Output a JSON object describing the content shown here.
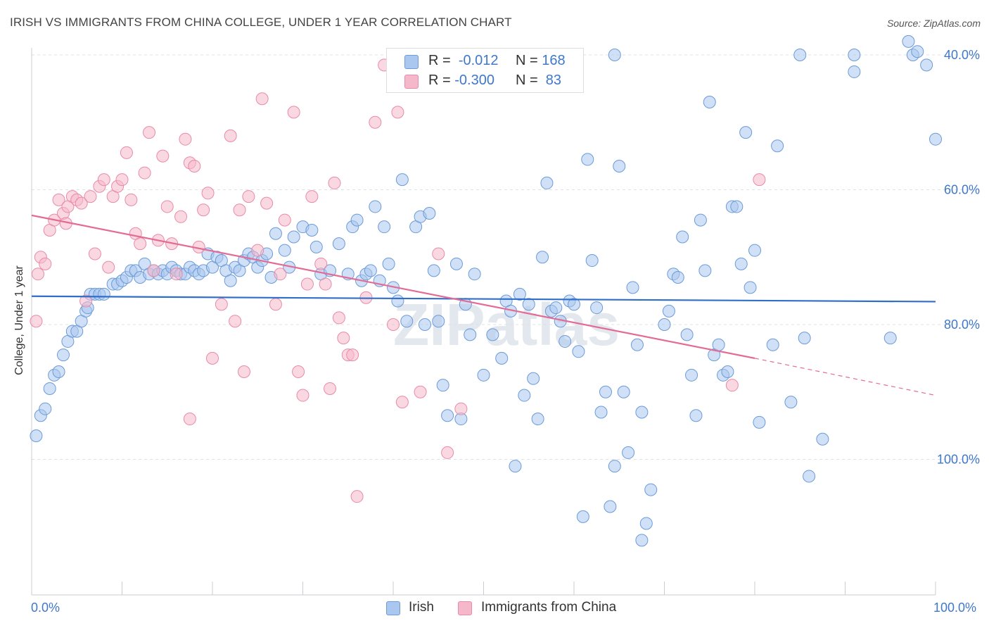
{
  "title": "IRISH VS IMMIGRANTS FROM CHINA COLLEGE, UNDER 1 YEAR CORRELATION CHART",
  "source": "Source: ZipAtlas.com",
  "legend": {
    "rows": [
      {
        "r_label": "R =",
        "r_value": "-0.012",
        "n_label": "N =",
        "n_value": "168",
        "color": "#a9c7ef"
      },
      {
        "r_label": "R =",
        "r_value": "-0.300",
        "n_label": "N =",
        "n_value": " 83",
        "color": "#f5b8cb"
      }
    ]
  },
  "bottom_legend": [
    {
      "label": "Irish",
      "color": "#a9c7ef"
    },
    {
      "label": "Immigrants from China",
      "color": "#f5b8cb"
    }
  ],
  "axis": {
    "x_min_label": "0.0%",
    "x_max_label": "100.0%",
    "y_label": "College, Under 1 year",
    "y_ticks": [
      "100.0%",
      "80.0%",
      "60.0%",
      "40.0%"
    ]
  },
  "watermark": "ZIPatlas",
  "chart_data": {
    "type": "scatter",
    "title": "IRISH VS IMMIGRANTS FROM CHINA COLLEGE, UNDER 1 YEAR CORRELATION CHART",
    "xlabel": "",
    "ylabel": "College, Under 1 year",
    "xlim": [
      0,
      100
    ],
    "ylim": [
      20,
      103
    ],
    "y_ticks": [
      40,
      60,
      80,
      100
    ],
    "grid": "horizontal dashed",
    "legend_position": "top-center",
    "series": [
      {
        "name": "Irish",
        "color": "#a9c7ef",
        "edge": "#6b9bd8",
        "trend": {
          "x0": 0,
          "y0": 64.2,
          "x1": 100,
          "y1": 63.4,
          "color": "#2f6fca"
        },
        "points": [
          [
            0.5,
            43.5
          ],
          [
            1.0,
            46.5
          ],
          [
            1.5,
            47.5
          ],
          [
            2.0,
            50.5
          ],
          [
            2.5,
            52.5
          ],
          [
            3.0,
            53.0
          ],
          [
            3.5,
            55.5
          ],
          [
            4.0,
            57.5
          ],
          [
            4.5,
            59.0
          ],
          [
            5.0,
            59.0
          ],
          [
            5.5,
            60.5
          ],
          [
            6.0,
            62.0
          ],
          [
            6.2,
            62.5
          ],
          [
            6.5,
            64.5
          ],
          [
            7.0,
            64.5
          ],
          [
            7.5,
            64.5
          ],
          [
            8.0,
            64.5
          ],
          [
            9.0,
            66.0
          ],
          [
            9.5,
            66.0
          ],
          [
            10.0,
            66.5
          ],
          [
            10.5,
            67.0
          ],
          [
            11.0,
            68.0
          ],
          [
            11.5,
            68.0
          ],
          [
            12.0,
            67.0
          ],
          [
            12.5,
            69.0
          ],
          [
            13.0,
            67.5
          ],
          [
            13.5,
            68.0
          ],
          [
            14.0,
            67.5
          ],
          [
            14.5,
            68.0
          ],
          [
            15.0,
            67.5
          ],
          [
            15.5,
            68.5
          ],
          [
            16.0,
            68.0
          ],
          [
            16.5,
            67.5
          ],
          [
            17.0,
            67.5
          ],
          [
            17.5,
            68.5
          ],
          [
            18.0,
            68.0
          ],
          [
            18.5,
            67.5
          ],
          [
            19.0,
            68.0
          ],
          [
            19.5,
            70.5
          ],
          [
            20.0,
            68.5
          ],
          [
            20.5,
            70.0
          ],
          [
            21.0,
            69.5
          ],
          [
            21.5,
            68.0
          ],
          [
            22.0,
            66.5
          ],
          [
            22.5,
            68.5
          ],
          [
            23.0,
            68.0
          ],
          [
            23.5,
            69.5
          ],
          [
            24.0,
            70.5
          ],
          [
            24.5,
            70.0
          ],
          [
            25.0,
            68.5
          ],
          [
            25.5,
            69.5
          ],
          [
            26.0,
            70.5
          ],
          [
            26.5,
            67.0
          ],
          [
            27.0,
            73.5
          ],
          [
            28.0,
            71.0
          ],
          [
            28.5,
            68.5
          ],
          [
            29.0,
            73.0
          ],
          [
            30.0,
            74.5
          ],
          [
            31.0,
            74.0
          ],
          [
            31.5,
            71.5
          ],
          [
            32.0,
            67.5
          ],
          [
            33.0,
            68.0
          ],
          [
            34.0,
            72.0
          ],
          [
            35.0,
            67.5
          ],
          [
            35.5,
            74.5
          ],
          [
            36.0,
            75.5
          ],
          [
            36.5,
            66.5
          ],
          [
            37.0,
            67.5
          ],
          [
            37.5,
            68.0
          ],
          [
            38.0,
            77.5
          ],
          [
            38.5,
            66.5
          ],
          [
            39.0,
            74.5
          ],
          [
            39.5,
            69.0
          ],
          [
            40.0,
            65.5
          ],
          [
            40.5,
            63.5
          ],
          [
            41.0,
            81.5
          ],
          [
            41.5,
            60.5
          ],
          [
            42.5,
            74.5
          ],
          [
            43.0,
            76.0
          ],
          [
            43.5,
            60.0
          ],
          [
            44.0,
            76.5
          ],
          [
            44.5,
            68.0
          ],
          [
            45.0,
            60.5
          ],
          [
            45.5,
            51.0
          ],
          [
            46.0,
            46.5
          ],
          [
            47.0,
            69.0
          ],
          [
            47.5,
            46.0
          ],
          [
            48.0,
            63.0
          ],
          [
            48.5,
            58.5
          ],
          [
            49.0,
            67.5
          ],
          [
            50.0,
            52.5
          ],
          [
            51.0,
            58.5
          ],
          [
            52.0,
            55.0
          ],
          [
            52.5,
            63.5
          ],
          [
            53.0,
            62.0
          ],
          [
            53.5,
            39.0
          ],
          [
            54.0,
            64.5
          ],
          [
            54.5,
            49.5
          ],
          [
            55.0,
            63.0
          ],
          [
            55.5,
            52.0
          ],
          [
            56.0,
            46.0
          ],
          [
            56.5,
            70.0
          ],
          [
            57.0,
            81.0
          ],
          [
            57.5,
            62.0
          ],
          [
            58.0,
            62.5
          ],
          [
            58.5,
            60.5
          ],
          [
            59.0,
            57.5
          ],
          [
            59.5,
            63.5
          ],
          [
            60.0,
            63.0
          ],
          [
            60.5,
            56.0
          ],
          [
            61.0,
            31.5
          ],
          [
            61.5,
            84.5
          ],
          [
            62.0,
            69.5
          ],
          [
            62.5,
            62.5
          ],
          [
            63.0,
            47.0
          ],
          [
            63.5,
            50.0
          ],
          [
            64.0,
            33.0
          ],
          [
            64.5,
            39.0
          ],
          [
            65.0,
            83.5
          ],
          [
            65.5,
            50.0
          ],
          [
            66.0,
            41.0
          ],
          [
            66.5,
            65.5
          ],
          [
            67.0,
            57.0
          ],
          [
            67.5,
            47.0
          ],
          [
            67.5,
            28.0
          ],
          [
            68.0,
            30.5
          ],
          [
            68.5,
            35.5
          ],
          [
            70.0,
            60.0
          ],
          [
            70.5,
            62.0
          ],
          [
            71.0,
            67.5
          ],
          [
            71.5,
            67.0
          ],
          [
            72.0,
            73.0
          ],
          [
            72.5,
            58.5
          ],
          [
            73.0,
            52.5
          ],
          [
            73.5,
            46.5
          ],
          [
            74.0,
            75.5
          ],
          [
            74.5,
            68.0
          ],
          [
            75.0,
            93.0
          ],
          [
            75.5,
            55.5
          ],
          [
            76.0,
            57.0
          ],
          [
            76.5,
            52.5
          ],
          [
            77.0,
            53.0
          ],
          [
            77.5,
            77.5
          ],
          [
            78.0,
            77.5
          ],
          [
            78.5,
            69.0
          ],
          [
            79.0,
            88.5
          ],
          [
            79.5,
            65.5
          ],
          [
            80.0,
            71.0
          ],
          [
            80.5,
            45.5
          ],
          [
            82.0,
            57.0
          ],
          [
            82.5,
            86.5
          ],
          [
            84.0,
            48.5
          ],
          [
            85.5,
            58.0
          ],
          [
            86.0,
            37.5
          ],
          [
            87.5,
            43.0
          ],
          [
            91.0,
            97.5
          ],
          [
            95.0,
            58.0
          ],
          [
            97.0,
            102.0
          ],
          [
            97.5,
            100.0
          ],
          [
            98.0,
            100.5
          ],
          [
            99.0,
            98.5
          ],
          [
            100.0,
            87.5
          ],
          [
            64.5,
            100.0
          ],
          [
            85.0,
            100.0
          ],
          [
            91.0,
            100.0
          ]
        ]
      },
      {
        "name": "Immigrants from China",
        "color": "#f5b8cb",
        "edge": "#e98aa8",
        "trend": {
          "x0": 0,
          "y0": 76.2,
          "x1": 80,
          "y1": 55.0,
          "dash_to": {
            "x": 100,
            "y": 49.5
          },
          "color": "#e36b95"
        },
        "points": [
          [
            0.5,
            60.5
          ],
          [
            0.7,
            67.5
          ],
          [
            1.0,
            70.0
          ],
          [
            1.5,
            69.0
          ],
          [
            2.0,
            74.0
          ],
          [
            2.5,
            75.5
          ],
          [
            3.0,
            78.5
          ],
          [
            3.5,
            76.5
          ],
          [
            3.8,
            75.0
          ],
          [
            4.0,
            77.5
          ],
          [
            4.5,
            79.0
          ],
          [
            5.0,
            78.5
          ],
          [
            5.5,
            78.0
          ],
          [
            6.0,
            63.5
          ],
          [
            6.5,
            79.0
          ],
          [
            7.0,
            70.5
          ],
          [
            7.5,
            80.5
          ],
          [
            8.0,
            81.5
          ],
          [
            8.5,
            68.5
          ],
          [
            9.0,
            79.0
          ],
          [
            9.5,
            80.5
          ],
          [
            10.0,
            81.5
          ],
          [
            10.5,
            85.5
          ],
          [
            11.0,
            78.5
          ],
          [
            11.5,
            73.5
          ],
          [
            12.0,
            72.0
          ],
          [
            12.5,
            82.5
          ],
          [
            13.0,
            88.5
          ],
          [
            13.5,
            68.0
          ],
          [
            14.0,
            72.5
          ],
          [
            14.5,
            85.0
          ],
          [
            15.0,
            77.5
          ],
          [
            15.5,
            72.0
          ],
          [
            16.0,
            67.5
          ],
          [
            16.5,
            76.0
          ],
          [
            17.0,
            87.5
          ],
          [
            17.5,
            84.0
          ],
          [
            17.5,
            46.0
          ],
          [
            18.0,
            83.5
          ],
          [
            18.5,
            71.5
          ],
          [
            19.0,
            77.0
          ],
          [
            19.5,
            79.5
          ],
          [
            20.0,
            55.0
          ],
          [
            21.0,
            63.0
          ],
          [
            22.0,
            88.0
          ],
          [
            22.5,
            60.5
          ],
          [
            23.0,
            77.0
          ],
          [
            23.5,
            53.0
          ],
          [
            24.0,
            79.0
          ],
          [
            25.0,
            71.0
          ],
          [
            25.5,
            93.5
          ],
          [
            26.0,
            78.0
          ],
          [
            27.0,
            63.0
          ],
          [
            27.5,
            67.5
          ],
          [
            28.0,
            75.5
          ],
          [
            29.0,
            91.5
          ],
          [
            29.5,
            53.0
          ],
          [
            30.0,
            49.5
          ],
          [
            30.5,
            66.0
          ],
          [
            31.0,
            79.0
          ],
          [
            32.0,
            69.0
          ],
          [
            32.5,
            66.0
          ],
          [
            33.0,
            50.5
          ],
          [
            33.5,
            81.0
          ],
          [
            34.0,
            61.0
          ],
          [
            34.5,
            58.0
          ],
          [
            35.0,
            55.5
          ],
          [
            35.5,
            55.5
          ],
          [
            36.0,
            34.5
          ],
          [
            37.0,
            64.0
          ],
          [
            38.0,
            90.0
          ],
          [
            39.0,
            98.5
          ],
          [
            40.0,
            60.0
          ],
          [
            40.5,
            91.5
          ],
          [
            41.0,
            48.5
          ],
          [
            43.0,
            50.0
          ],
          [
            45.0,
            70.5
          ],
          [
            46.0,
            41.0
          ],
          [
            47.5,
            47.5
          ],
          [
            77.5,
            51.0
          ],
          [
            80.5,
            81.5
          ]
        ]
      }
    ]
  }
}
